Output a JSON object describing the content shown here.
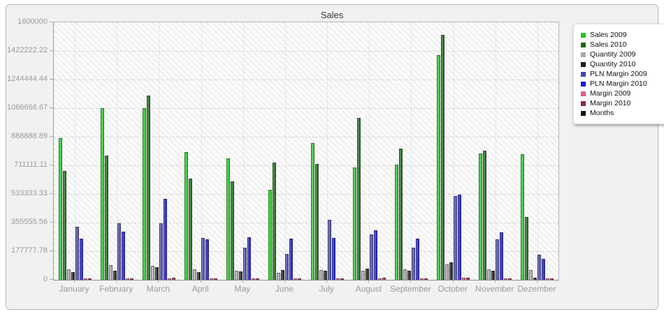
{
  "window": {
    "title": "Sales"
  },
  "chart_data": {
    "type": "bar",
    "title": "Sales",
    "xlabel": "",
    "ylabel": "",
    "ylim": [
      0,
      1600000
    ],
    "grid": true,
    "legend_position": "right",
    "yticks": [
      "0",
      "177777.78",
      "355555.56",
      "533333.33",
      "711111.11",
      "888888.89",
      "1066666.67",
      "1244444.44",
      "1422222.22",
      "1600000"
    ],
    "categories": [
      "January",
      "February",
      "March",
      "April",
      "May",
      "June",
      "July",
      "August",
      "September",
      "October",
      "November",
      "Dezember"
    ],
    "series": [
      {
        "name": "Sales 2009",
        "color": "#23c523",
        "values": [
          880000,
          1065000,
          1066000,
          795000,
          755000,
          560000,
          850000,
          700000,
          715000,
          1396000,
          785000,
          780000
        ]
      },
      {
        "name": "Sales 2010",
        "color": "#156815",
        "values": [
          675000,
          770000,
          1145000,
          630000,
          610000,
          730000,
          720000,
          1005000,
          815000,
          1522000,
          800000,
          390000
        ]
      },
      {
        "name": "Quantity 2009",
        "color": "#a9a9a9",
        "values": [
          65000,
          90000,
          87000,
          65000,
          55000,
          43000,
          61000,
          57000,
          65000,
          96000,
          65000,
          61000
        ]
      },
      {
        "name": "Quantity 2010",
        "color": "#1c1c1c",
        "values": [
          48000,
          57000,
          78000,
          48000,
          52000,
          61000,
          57000,
          70000,
          57000,
          109000,
          57000,
          13000
        ]
      },
      {
        "name": "PLN Margin 2009",
        "color": "#4747b2",
        "values": [
          330000,
          350000,
          352000,
          258000,
          200000,
          160000,
          372000,
          280000,
          200000,
          520000,
          250000,
          155000
        ]
      },
      {
        "name": "PLN Margin 2010",
        "color": "#1717d1",
        "values": [
          255000,
          300000,
          505000,
          250000,
          265000,
          255000,
          262000,
          310000,
          255000,
          530000,
          295000,
          130000
        ]
      },
      {
        "name": "Margin 2009",
        "color": "#de5a8c",
        "values": [
          10000,
          10000,
          10000,
          10000,
          8000,
          8000,
          10000,
          10000,
          10000,
          12000,
          10000,
          8000
        ]
      },
      {
        "name": "Margin 2010",
        "color": "#8c2847",
        "values": [
          10000,
          10000,
          12000,
          10000,
          10000,
          10000,
          10000,
          12000,
          10000,
          12000,
          10000,
          8000
        ]
      },
      {
        "name": "Months",
        "color": "#141414",
        "values": [
          0,
          0,
          0,
          0,
          0,
          0,
          0,
          0,
          0,
          0,
          0,
          0
        ]
      }
    ]
  }
}
